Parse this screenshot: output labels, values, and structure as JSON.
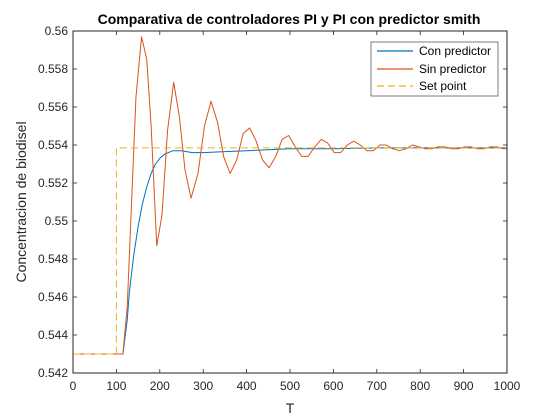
{
  "chart_data": {
    "type": "line",
    "title": "Comparativa de controladores PI y PI con predictor smith",
    "xlabel": "T",
    "ylabel": "Concentracion de biodisel",
    "xlim": [
      0,
      1000
    ],
    "ylim": [
      0.542,
      0.56
    ],
    "xticks": [
      0,
      100,
      200,
      300,
      400,
      500,
      600,
      700,
      800,
      900,
      1000
    ],
    "yticks": [
      0.542,
      0.544,
      0.546,
      0.548,
      0.55,
      0.552,
      0.554,
      0.556,
      0.558,
      0.56
    ],
    "ytick_labels": [
      "0.542",
      "0.544",
      "0.546",
      "0.548",
      "0.55",
      "0.552",
      "0.554",
      "0.556",
      "0.558",
      "0.56"
    ],
    "grid": false,
    "legend": "top-right",
    "initial_value": 0.543,
    "step_time": 100,
    "setpoint": 0.55385,
    "series": [
      {
        "name": "Con predictor",
        "color": "#0072BD",
        "style": "solid",
        "x": [
          0,
          115,
          125,
          130,
          140,
          150,
          160,
          170,
          180,
          190,
          200,
          210,
          220,
          230,
          240,
          250,
          275,
          300,
          350,
          400,
          500,
          600,
          700,
          1000
        ],
        "y": [
          0.543,
          0.543,
          0.5448,
          0.5463,
          0.5482,
          0.5497,
          0.5509,
          0.5518,
          0.5525,
          0.553,
          0.5533,
          0.5535,
          0.5536,
          0.5537,
          0.5537,
          0.5537,
          0.5536,
          0.5536,
          0.55365,
          0.5537,
          0.5538,
          0.5538,
          0.55385,
          0.55385
        ]
      },
      {
        "name": "Sin predictor",
        "color": "#D95319",
        "style": "solid",
        "x": [
          0,
          115,
          125,
          135,
          145,
          158,
          170,
          180,
          193,
          205,
          218,
          232,
          245,
          258,
          272,
          288,
          303,
          318,
          333,
          347,
          362,
          377,
          392,
          407,
          422,
          437,
          452,
          467,
          482,
          497,
          512,
          527,
          542,
          557,
          572,
          587,
          602,
          617,
          632,
          647,
          662,
          677,
          692,
          707,
          722,
          737,
          752,
          767,
          782,
          797,
          812,
          827,
          842,
          857,
          872,
          887,
          902,
          917,
          932,
          947,
          962,
          977,
          992,
          1000
        ],
        "y": [
          0.543,
          0.543,
          0.5455,
          0.551,
          0.5565,
          0.5597,
          0.5585,
          0.555,
          0.5487,
          0.5503,
          0.5548,
          0.5573,
          0.5555,
          0.5527,
          0.5512,
          0.5525,
          0.555,
          0.5563,
          0.5552,
          0.5534,
          0.5525,
          0.5532,
          0.5546,
          0.5549,
          0.5542,
          0.5532,
          0.5528,
          0.5534,
          0.5543,
          0.5545,
          0.5539,
          0.5534,
          0.5534,
          0.5539,
          0.5543,
          0.5541,
          0.5536,
          0.5536,
          0.554,
          0.5542,
          0.554,
          0.5537,
          0.5537,
          0.554,
          0.554,
          0.5538,
          0.5537,
          0.5538,
          0.554,
          0.5539,
          0.5538,
          0.5538,
          0.5539,
          0.5539,
          0.5538,
          0.5538,
          0.5539,
          0.5539,
          0.5538,
          0.5538,
          0.5539,
          0.5539,
          0.5538,
          0.5538
        ]
      },
      {
        "name": "Set point",
        "color": "#EDB120",
        "style": "dashed",
        "x": [
          0,
          100,
          100,
          1000
        ],
        "y": [
          0.543,
          0.543,
          0.55385,
          0.55385
        ]
      }
    ]
  }
}
